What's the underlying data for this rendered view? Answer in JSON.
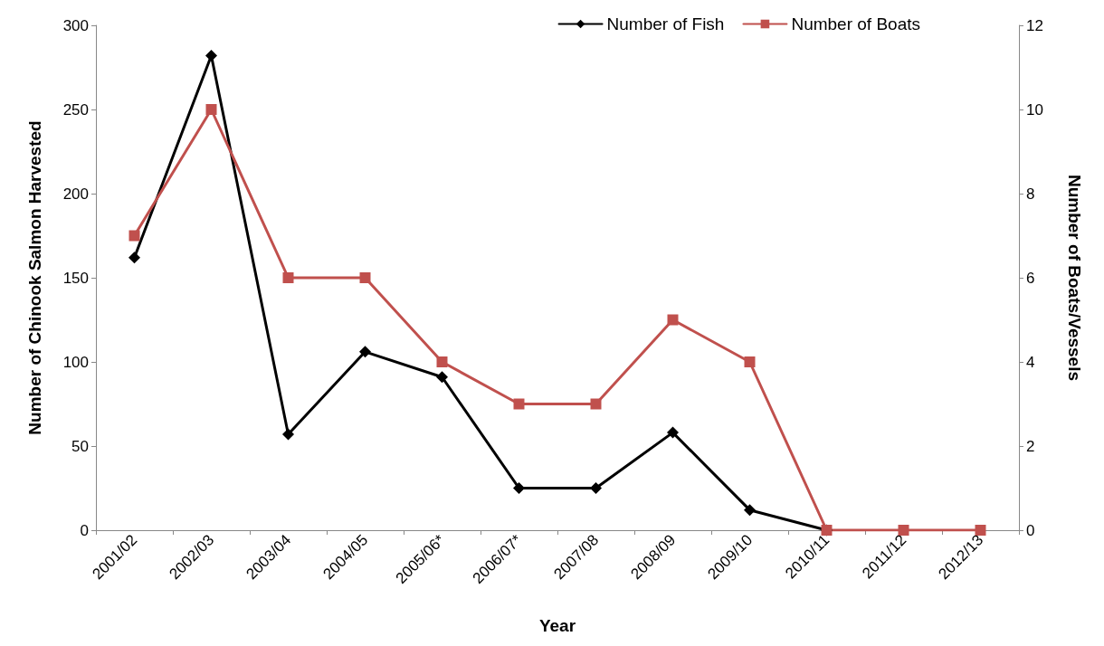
{
  "chart_data": {
    "type": "line",
    "xlabel": "Year",
    "ylabel": "Number of Chinook Salmon Harvested",
    "y2label": "Number of Boats/Vessels",
    "categories": [
      "2001/02",
      "2002/03",
      "2003/04",
      "2004/05",
      "2005/06*",
      "2006/07*",
      "2007/08",
      "2008/09",
      "2009/10",
      "2010/11",
      "2011/12",
      "2012/13"
    ],
    "series": [
      {
        "name": "Number of Fish",
        "color": "#000000",
        "marker": "diamond",
        "values": [
          162,
          282,
          57,
          106,
          91,
          25,
          25,
          58,
          12,
          0,
          null,
          null
        ]
      },
      {
        "name": "Number of Boats",
        "color": "#c0504d",
        "marker": "square",
        "axis": "y2",
        "values": [
          7,
          10,
          6,
          6,
          4,
          3,
          3,
          5,
          4,
          0,
          0,
          0
        ]
      }
    ],
    "ylim": [
      0,
      300
    ],
    "yticks": [
      0,
      50,
      100,
      150,
      200,
      250,
      300
    ],
    "y2lim": [
      0,
      12
    ],
    "y2ticks": [
      0,
      2,
      4,
      6,
      8,
      10,
      12
    ],
    "grid": false,
    "legend": "top right",
    "line_style": "solid"
  }
}
